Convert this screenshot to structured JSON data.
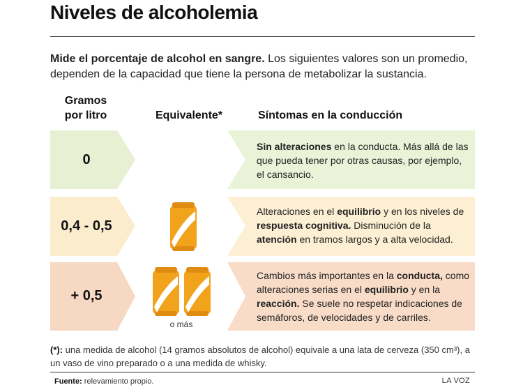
{
  "title": "Niveles de alcoholemia",
  "intro": {
    "lead": "Mide el porcentaje de alcohol en sangre.",
    "rest": " Los siguientes valores son un promedio, dependen de la capacidad que tiene la persona de metabolizar la sustancia."
  },
  "columns": {
    "gramos_line1": "Gramos",
    "gramos_line2": "por litro",
    "equivalente": "Equivalente*",
    "sintomas": "Síntomas en la conducción"
  },
  "rows": [
    {
      "value": "0",
      "cans": 0,
      "color_arrow": "#e7f0d3",
      "color_text": "#eaf3d8",
      "symptoms": [
        {
          "t": "Sin alteraciones",
          "b": true
        },
        {
          "t": " en la conducta. Más allá de las que pueda tener por otras causas, por ejemplo, el cansancio.",
          "b": false
        }
      ]
    },
    {
      "value": "0,4 - 0,5",
      "cans": 1,
      "color_arrow": "#fbeccd",
      "color_text": "#fcefd3",
      "symptoms": [
        {
          "t": "Alteraciones en el ",
          "b": false
        },
        {
          "t": "equilibrio",
          "b": true
        },
        {
          "t": " y en los niveles de ",
          "b": false
        },
        {
          "t": "respuesta cognitiva.",
          "b": true
        },
        {
          "t": " Disminución de la ",
          "b": false
        },
        {
          "t": "atención",
          "b": true
        },
        {
          "t": " en tramos largos y a alta velocidad.",
          "b": false
        }
      ]
    },
    {
      "value": "+ 0,5",
      "cans": 2,
      "note": "o más",
      "color_arrow": "#f6d8c3",
      "color_text": "#f8dcc8",
      "symptoms": [
        {
          "t": "Cambios más importantes en la ",
          "b": false
        },
        {
          "t": "conducta,",
          "b": true
        },
        {
          "t": " como alteraciones serias en el ",
          "b": false
        },
        {
          "t": "equilibrio",
          "b": true
        },
        {
          "t": " y en la ",
          "b": false
        },
        {
          "t": "reacción.",
          "b": true
        },
        {
          "t": " Se suele no respetar indicaciones de semáforos, de velocidades y de carriles.",
          "b": false
        }
      ]
    }
  ],
  "footnote": {
    "mark": "(*):",
    "text": " una medida de alcohol (14 gramos absolutos de alcohol) equivale a una lata de cerveza (350 cm³), a un vaso de vino preparado o a una medida de whisky."
  },
  "source": {
    "label": "Fuente:",
    "text": " relevamiento propio."
  },
  "credit": "LA VOZ",
  "colors": {
    "can_orange": "#f2a31c",
    "can_rim": "#e08c12",
    "can_stripe": "#ffffff"
  }
}
